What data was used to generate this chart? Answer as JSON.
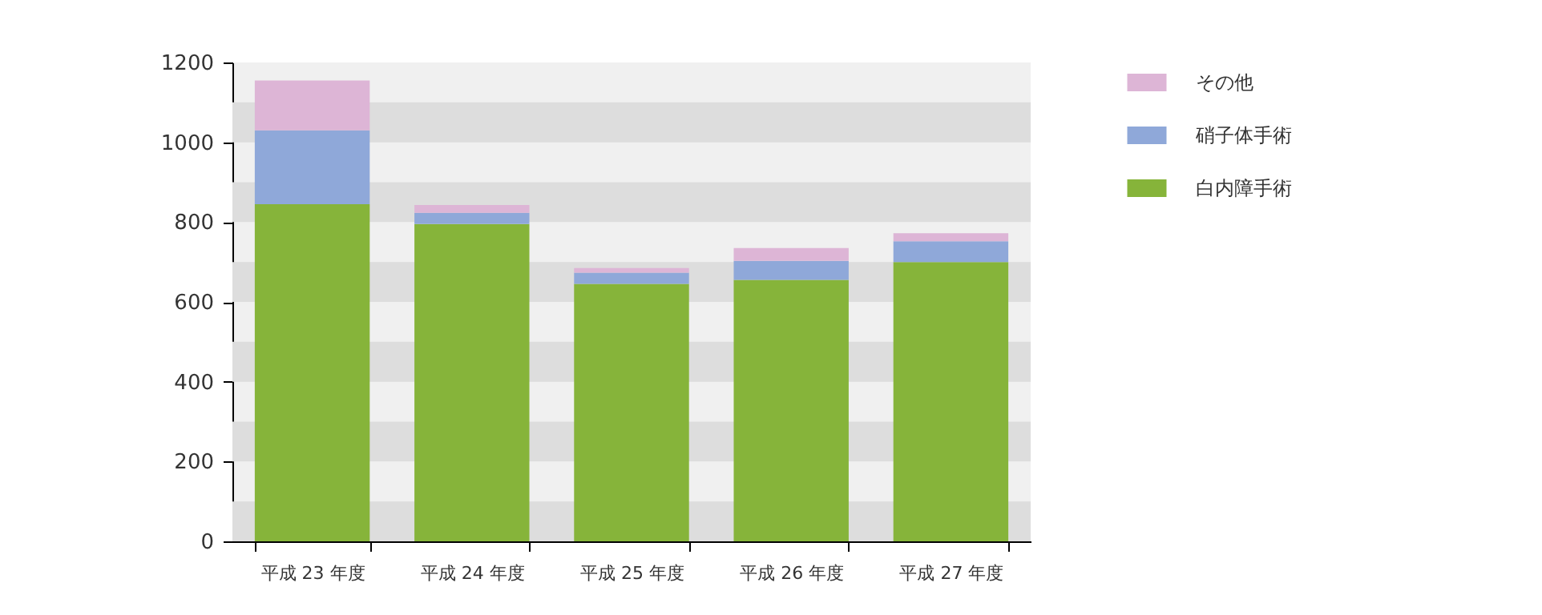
{
  "chart_data": {
    "type": "bar",
    "stacked": true,
    "categories": [
      "平成 23 年度",
      "平成 24 年度",
      "平成 25 年度",
      "平成 26 年度",
      "平成 27 年度"
    ],
    "series": [
      {
        "name": "白内障手術",
        "color": "#86b43a",
        "values": [
          845,
          795,
          645,
          655,
          700
        ]
      },
      {
        "name": "硝子体手術",
        "color": "#8fa8d9",
        "values": [
          185,
          28,
          28,
          48,
          52
        ]
      },
      {
        "name": "その他",
        "color": "#ddb5d6",
        "values": [
          125,
          20,
          12,
          32,
          20
        ]
      }
    ],
    "ylim": [
      0,
      1200
    ],
    "yticks": [
      0,
      200,
      400,
      600,
      800,
      1000,
      1200
    ],
    "bands": [
      {
        "axis": "y",
        "from": 0,
        "to": 100,
        "color": "#dddddd"
      },
      {
        "axis": "y",
        "from": 200,
        "to": 300,
        "color": "#dddddd"
      },
      {
        "axis": "y",
        "from": 400,
        "to": 500,
        "color": "#dddddd"
      },
      {
        "axis": "y",
        "from": 600,
        "to": 700,
        "color": "#dddddd"
      },
      {
        "axis": "y",
        "from": 800,
        "to": 900,
        "color": "#dddddd"
      },
      {
        "axis": "y",
        "from": 1000,
        "to": 1100,
        "color": "#dddddd"
      }
    ],
    "legend": "right"
  }
}
